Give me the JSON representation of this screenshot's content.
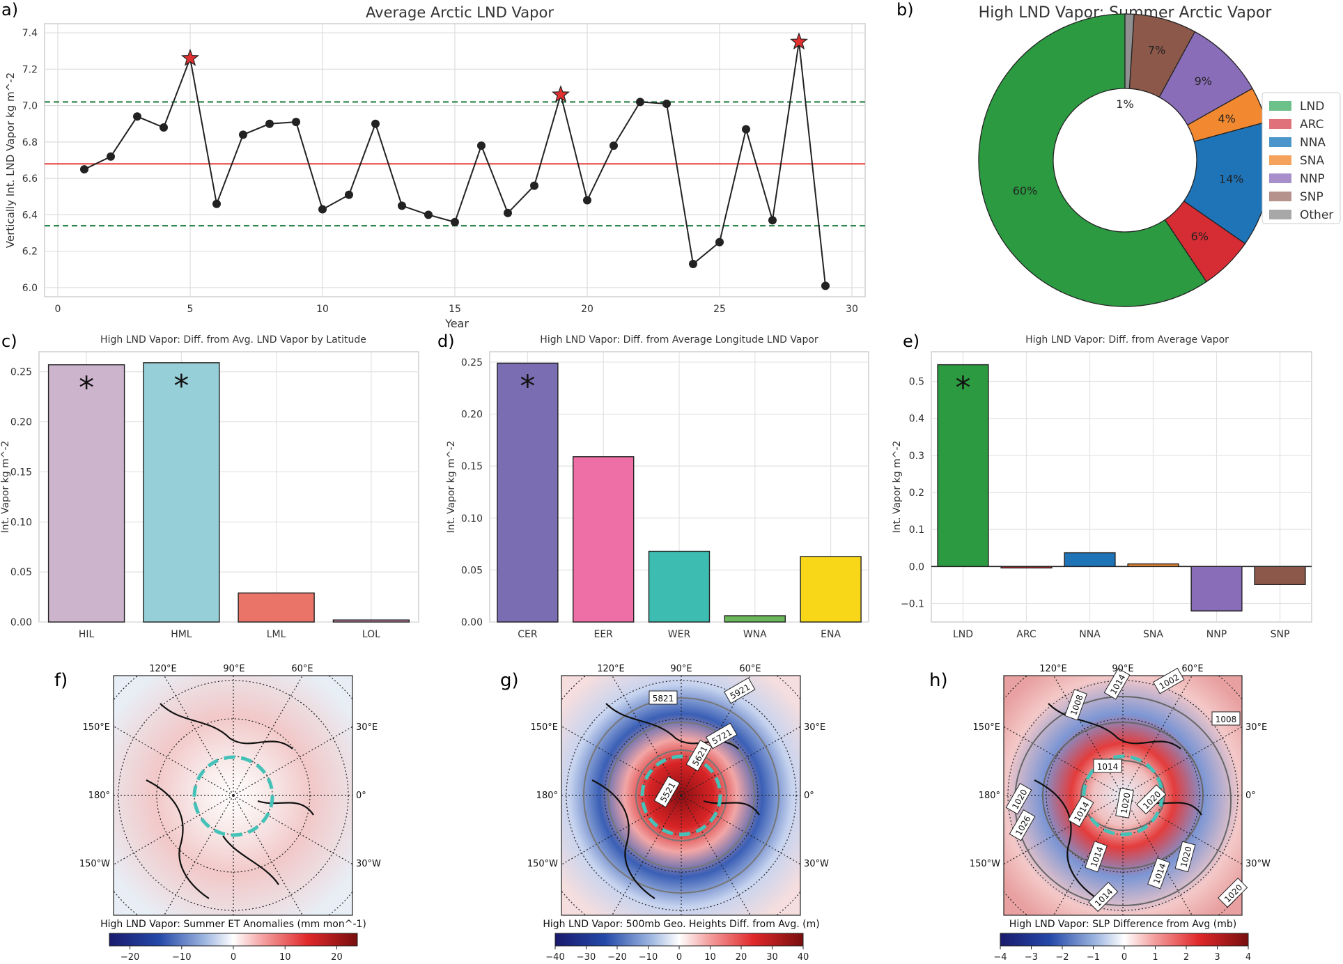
{
  "chart_data": [
    {
      "panel": "a)",
      "type": "line",
      "title": "Average Arctic LND Vapor",
      "xlabel": "Year",
      "ylabel": "Vertically Int. LND Vapor  kg m^-2",
      "xlim": [
        -0.5,
        30.5
      ],
      "ylim": [
        5.95,
        7.45
      ],
      "xticks": [
        0,
        5,
        10,
        15,
        20,
        25,
        30
      ],
      "yticks": [
        6.0,
        6.2,
        6.4,
        6.6,
        6.8,
        7.0,
        7.2,
        7.4
      ],
      "x": [
        1,
        2,
        3,
        4,
        5,
        6,
        7,
        8,
        9,
        10,
        11,
        12,
        13,
        14,
        15,
        16,
        17,
        18,
        19,
        20,
        21,
        22,
        23,
        24,
        25,
        26,
        27,
        28,
        29
      ],
      "y": [
        6.65,
        6.72,
        6.94,
        6.88,
        7.26,
        6.46,
        6.84,
        6.9,
        6.91,
        6.43,
        6.51,
        6.9,
        6.45,
        6.4,
        6.36,
        6.78,
        6.41,
        6.56,
        7.06,
        6.48,
        6.78,
        7.02,
        7.01,
        6.13,
        6.25,
        6.87,
        6.37,
        7.35,
        6.01
      ],
      "star_years": [
        5,
        19,
        28
      ],
      "mean_line": 6.68,
      "upper_line": 7.02,
      "lower_line": 6.34,
      "line_color": "#222222",
      "mean_color": "#e8413a",
      "band_color": "#1a7a3a",
      "star_color": "#e03030"
    },
    {
      "panel": "b)",
      "type": "pie",
      "title": "High LND Vapor: Summer Arctic Vapor",
      "slices": [
        {
          "label": "LND",
          "value": 60,
          "text": "60%",
          "color": "#2b9a40"
        },
        {
          "label": "ARC",
          "value": 6,
          "text": "6%",
          "color": "#d62c34"
        },
        {
          "label": "NNA",
          "value": 14,
          "text": "14%",
          "color": "#1f74b8"
        },
        {
          "label": "SNA",
          "value": 4,
          "text": "4%",
          "color": "#f28930"
        },
        {
          "label": "NNP",
          "value": 9,
          "text": "9%",
          "color": "#8a6db8"
        },
        {
          "label": "SNP",
          "value": 7,
          "text": "7%",
          "color": "#8c584a"
        },
        {
          "label": "Other",
          "value": 1,
          "text": "1%",
          "color": "#909090"
        }
      ],
      "legend": [
        "LND",
        "ARC",
        "NNA",
        "SNA",
        "NNP",
        "SNP",
        "Other"
      ],
      "legend_colors": [
        "#6cc08a",
        "#e0707a",
        "#4a96cc",
        "#f5a25c",
        "#a88fcc",
        "#b5938c",
        "#a8a8a8"
      ]
    },
    {
      "panel": "c)",
      "type": "bar",
      "title": "High LND Vapor: Diff. from Avg. LND Vapor by Latitude",
      "ylabel": "Int. Vapor kg m^-2",
      "categories": [
        "HIL",
        "HML",
        "LML",
        "LOL"
      ],
      "values": [
        0.257,
        0.259,
        0.029,
        0.002
      ],
      "colors": [
        "#cdb4cd",
        "#96cfd7",
        "#ea7467",
        "#d08ab0"
      ],
      "significant": [
        true,
        true,
        false,
        false
      ],
      "ylim": [
        0,
        0.27
      ],
      "yticks": [
        0.0,
        0.05,
        0.1,
        0.15,
        0.2,
        0.25
      ],
      "ytick_labels": [
        "0.00",
        "0.05",
        "0.10",
        "0.15",
        "0.20",
        "0.25"
      ]
    },
    {
      "panel": "d)",
      "type": "bar",
      "title": "High LND Vapor: Diff. from Average Longitude LND Vapor",
      "ylabel": "Int. Vapor kg m^-2",
      "categories": [
        "CER",
        "EER",
        "WER",
        "WNA",
        "ENA"
      ],
      "values": [
        0.249,
        0.159,
        0.068,
        0.006,
        0.063
      ],
      "colors": [
        "#7a6db2",
        "#ed6fa6",
        "#3dbdb1",
        "#6bb85a",
        "#f8d718"
      ],
      "significant": [
        true,
        false,
        false,
        false,
        false
      ],
      "ylim": [
        0,
        0.26
      ],
      "yticks": [
        0.0,
        0.05,
        0.1,
        0.15,
        0.2,
        0.25
      ],
      "ytick_labels": [
        "0.00",
        "0.05",
        "0.10",
        "0.15",
        "0.20",
        "0.25"
      ]
    },
    {
      "panel": "e)",
      "type": "bar",
      "title": "High LND Vapor: Diff. from Average Vapor",
      "ylabel": "Int. Vapor kg m^-2",
      "categories": [
        "LND",
        "ARC",
        "NNA",
        "SNA",
        "NNP",
        "SNP"
      ],
      "values": [
        0.545,
        -0.004,
        0.037,
        0.007,
        -0.12,
        -0.049
      ],
      "colors": [
        "#2b9a40",
        "#d62c34",
        "#1f74b8",
        "#f28930",
        "#8a6db8",
        "#8c584a"
      ],
      "significant": [
        true,
        false,
        false,
        false,
        false,
        false
      ],
      "ylim": [
        -0.15,
        0.58
      ],
      "yticks": [
        -0.1,
        0.0,
        0.1,
        0.2,
        0.3,
        0.4,
        0.5
      ],
      "ytick_labels": [
        "−0.1",
        "0.0",
        "0.1",
        "0.2",
        "0.3",
        "0.4",
        "0.5"
      ]
    }
  ],
  "maps": [
    {
      "panel": "f)",
      "caption": "High LND Vapor: Summer ET Anomalies (mm mon^-1)",
      "colorbar_ticks": [
        "−20",
        "−10",
        "0",
        "10",
        "20"
      ],
      "lon_labels": [
        "120°E",
        "90°E",
        "60°E",
        "150°E",
        "30°E",
        "180°",
        "0°",
        "150°W",
        "30°W"
      ],
      "contour_labels": []
    },
    {
      "panel": "g)",
      "caption": "High LND Vapor: 500mb Geo. Heights Diff. from Avg. (m)",
      "colorbar_ticks": [
        "−40",
        "−30",
        "−20",
        "−10",
        "0",
        "10",
        "20",
        "30",
        "40"
      ],
      "lon_labels": [
        "120°E",
        "90°E",
        "60°E",
        "150°E",
        "30°E",
        "180°",
        "0°",
        "150°W",
        "30°W"
      ],
      "contour_labels": [
        "5821",
        "5921",
        "5721",
        "5621",
        "5521"
      ]
    },
    {
      "panel": "h)",
      "caption": "High LND Vapor: SLP Difference from Avg (mb)",
      "colorbar_ticks": [
        "−4",
        "−3",
        "−2",
        "−1",
        "0",
        "1",
        "2",
        "3",
        "4"
      ],
      "lon_labels": [
        "120°E",
        "90°E",
        "60°E",
        "150°E",
        "30°E",
        "180°",
        "0°",
        "150°W",
        "30°W"
      ],
      "contour_labels": [
        "1008",
        "1014",
        "1002",
        "1008",
        "1014",
        "1020",
        "1020",
        "1014",
        "1026",
        "1020",
        "1014",
        "1020",
        "1014",
        "1014",
        "1020"
      ]
    }
  ]
}
